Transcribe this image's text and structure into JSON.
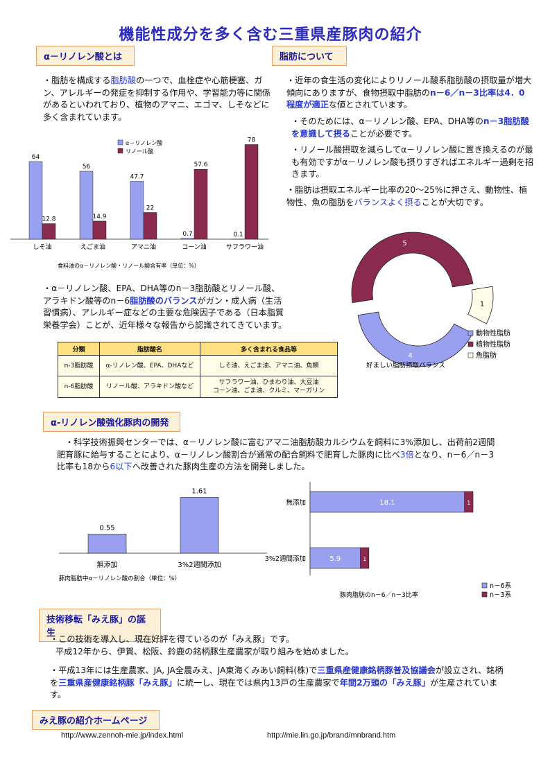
{
  "title": "機能性成分を多く含む三重県産豚肉の紹介",
  "colors": {
    "blue_bar": "#9aa0f0",
    "maroon_bar": "#8b2a4f",
    "ivory": "#fffde7",
    "header_bg": "#fdf0d8",
    "highlight": "#2a3ad0"
  },
  "sec1": {
    "header": "α－リノレン酸とは",
    "para_a": "・脂肪を構成する",
    "para_b": "脂肪酸",
    "para_c": "の一つで、血栓症や心筋梗塞、ガン、アレルギーの発症を抑制する作用や、学習能力等に関係があるといわれており、植物のアマニ、エゴマ、しそなどに多く含まれています。"
  },
  "sec2": {
    "header": "脂肪について",
    "p1a": "・近年の食生活の変化によりリノール酸系脂肪酸の摂取量が増大傾向にありますが、食物摂取中脂肪の",
    "p1b": "n－6／n－3比率は4．0程度が適正",
    "p1c": "な値とされています。",
    "p2a": "・そのためには、α－リノレン酸、EPA、DHA等の",
    "p2b": "n－3脂肪酸を意識して摂る",
    "p2c": "ことが必要です。",
    "p3": "・リノール酸摂取を減らしてα－リノレン酸に置き換えるのが最も有効ですがα－リノレン酸も摂りすぎればエネルギー過剰を招きます。",
    "p4a": "・脂肪は摂取エネルギー比率の20～25%に押さえ、動物性、植物性、魚の脂肪を",
    "p4b": "バランスよく摂る",
    "p4c": "ことが大切です。"
  },
  "chart_data": [
    {
      "type": "bar",
      "title": "食料油のα－リノレン酸・リノール酸含有率（単位：%）",
      "categories": [
        "しそ油",
        "えごま油",
        "アマニ油",
        "コーン油",
        "サフラワー油"
      ],
      "series": [
        {
          "name": "α－リノレン酸",
          "color": "#9aa0f0",
          "values": [
            64,
            56,
            47.7,
            0.7,
            0.1
          ]
        },
        {
          "name": "リノール酸",
          "color": "#8b2a4f",
          "values": [
            12.8,
            14.9,
            22,
            57.6,
            78
          ]
        }
      ],
      "ylim": [
        0,
        80
      ],
      "grid": false,
      "legend": "top-left"
    },
    {
      "type": "pie",
      "title": "好ましい脂肪摂取バランス",
      "categories": [
        "動物性脂肪",
        "植物性脂肪",
        "魚脂肪"
      ],
      "values": [
        4,
        5,
        1
      ],
      "colors": [
        "#9aa0f0",
        "#8b2a4f",
        "#fffde7"
      ],
      "legend": "right"
    },
    {
      "type": "bar",
      "title": "豚肉脂肪中α－リノレン酸の割合（単位：%）",
      "categories": [
        "無添加",
        "3%2週間添加"
      ],
      "values": [
        0.55,
        1.61
      ],
      "ylim": [
        0,
        1.8
      ]
    },
    {
      "type": "bar",
      "orientation": "horizontal",
      "title": "豚肉脂肪のn－6／n－3比率",
      "categories": [
        "無添加",
        "3%2週間添加"
      ],
      "series": [
        {
          "name": "n－6系",
          "color": "#9aa0f0",
          "values": [
            18.1,
            5.9
          ]
        },
        {
          "name": "n－3系",
          "color": "#8b2a4f",
          "values": [
            1,
            1
          ]
        }
      ],
      "legend": "bottom-right"
    }
  ],
  "sec3": {
    "para_a": "・α－リノレン酸、EPA、DHA等のn－3脂肪酸とリノール酸、アラキドン酸等のn－6",
    "para_b": "脂肪酸のバランス",
    "para_c": "がガン・成人病（生活習慣病）、アレルギー症などの主要な危険因子である（日本脂質栄養学会）ことが、近年様々な報告から認識されてきています。"
  },
  "table": {
    "headers": [
      "分類",
      "脂肪酸名",
      "多く含まれる食品等"
    ],
    "rows": [
      [
        "n-3脂肪酸",
        "α-リノレン酸、EPA、DHAなど",
        "しそ油、えごま油、アマニ油、魚類"
      ],
      [
        "n-6脂肪酸",
        "リノール酸、アラキドン酸など",
        "サフラワー油、ひまわり油、大豆油\nコーン油、ごま油、クルミ、マーガリン"
      ]
    ]
  },
  "sec4": {
    "header": "α-リノレン酸強化豚肉の開発",
    "para_a": "・科学技術振興センターでは、α－リノレン酸に富むアマニ油脂肪酸カルシウムを飼料に3%添加し、出荷前2週間肥育豚に給与することにより、α－リノレン酸割合が通常の配合飼料で肥育した豚肉に比べ",
    "para_b": "3倍",
    "para_c": "となり、n－6／n－3比率も18から",
    "para_d": "6以下",
    "para_e": "へ改善された豚肉生産の方法を開発しました。"
  },
  "sec5": {
    "header": "技術移転「みえ豚」の誕生",
    "line1": "・この技術を導入し、現在好評を得ているのが「みえ豚」です。",
    "line2": "平成12年から、伊賀、松阪、鈴鹿の銘柄豚生産農家が取り組みを始めました。",
    "p2a": "・平成13年には生産農家、JA, JA全農みえ、JA東海くみあい飼料(株)で",
    "p2b": "三重県産健康銘柄豚普及協議会",
    "p2c": "が設立され、銘柄を",
    "p2d": "三重県産健康銘柄豚「みえ豚」",
    "p2e": "に統一し、現在では県内13戸の生産農家で",
    "p2f": "年間2万頭の「みえ豚」",
    "p2g": "が生産されています。"
  },
  "sec6": {
    "header": "みえ豚の紹介ホームページ",
    "url1": "http://www.zennoh-mie.jp/index.html",
    "url2": "http://mie.lin.go.jp/brand/mnbrand.htm"
  }
}
